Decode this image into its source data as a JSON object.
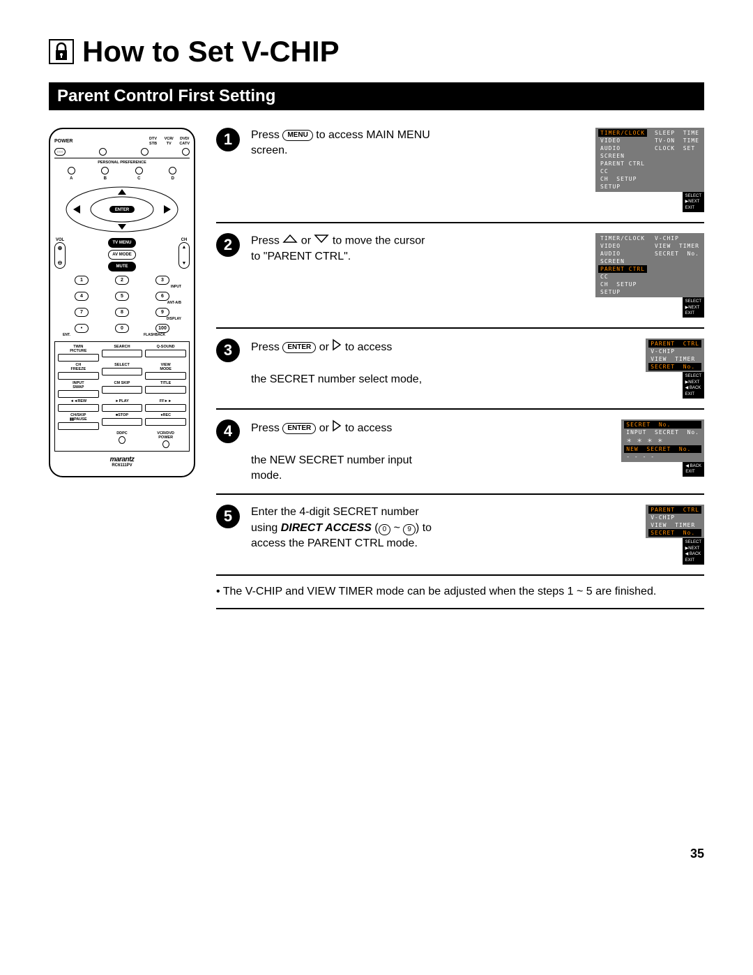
{
  "title": "How to Set V-CHIP",
  "section": "Parent Control First Setting",
  "remote": {
    "power": "POWER",
    "top_labels": [
      "DTV",
      "VCR/",
      "DVD/",
      "STB",
      "TV",
      "CATV"
    ],
    "personal_pref": "PERSONAL PREFERENCE",
    "pref_letters": [
      "A",
      "B",
      "C",
      "D"
    ],
    "enter": "ENTER",
    "vol": "VOL",
    "ch": "CH",
    "tvmenu": "TV MENU",
    "avmode": "AV MODE",
    "mute": "MUTE",
    "input": "INPUT",
    "anta": "ANT-A/B",
    "display": "DISPLAY",
    "ent": "ENT.",
    "flashback": "FLASHBACK",
    "nums": [
      "1",
      "2",
      "3",
      "4",
      "5",
      "6",
      "7",
      "8",
      "9",
      "•",
      "0",
      "100"
    ],
    "grid_labels": [
      "TWIN PICTURE",
      "SEARCH",
      "Q-SOUND",
      "CH FREEZE",
      "SELECT",
      "VIEW MODE",
      "INPUT",
      "SWAP",
      "CM SKIP",
      "TITLE",
      "◄◄REW",
      "►PLAY",
      "FF►►",
      "CH/SKIP",
      "▮▮PAUSE",
      "■STOP",
      "●REC",
      "",
      "DDPC",
      "",
      "VCR/DVD POWER"
    ],
    "logo": "marantz",
    "model": "RC6111PV"
  },
  "steps": [
    {
      "n": "1",
      "text_before": "Press ",
      "pill": "MENU",
      "text_after": " to access MAIN MENU screen.",
      "osd_left": [
        "TIMER/CLOCK",
        "VIDEO",
        "AUDIO",
        "SCREEN",
        "PARENT CTRL",
        "CC",
        "CH  SETUP",
        "SETUP"
      ],
      "osd_left_hl": 0,
      "osd_right": [
        "SLEEP  TIME",
        "TV-ON  TIME",
        "CLOCK  SET"
      ],
      "footer": [
        "SELECT",
        "▶NEXT",
        "EXIT"
      ]
    },
    {
      "n": "2",
      "html": "Press <span class='tri'><svg width='22' height='14'><polygon points='11,2 20,12 2,12' fill='none' stroke='#000' stroke-width='1.5'/></svg></span> or <span class='tri'><svg width='22' height='14'><polygon points='2,2 20,2 11,12' fill='none' stroke='#000' stroke-width='1.5'/></svg></span> to move the cursor to \"PARENT CTRL\".",
      "osd_left": [
        "TIMER/CLOCK",
        "VIDEO",
        "AUDIO",
        "SCREEN",
        "PARENT CTRL",
        "CC",
        "CH  SETUP",
        "SETUP"
      ],
      "osd_left_hl": 4,
      "osd_right": [
        "V-CHIP",
        "VIEW  TIMER",
        "SECRET  No."
      ],
      "footer": [
        "SELECT",
        "▶NEXT",
        "EXIT"
      ]
    },
    {
      "n": "3",
      "html": "Press <span class='pill'>ENTER</span> or <span class='tri'><svg width='14' height='18'><polygon points='2,2 12,9 2,16' fill='none' stroke='#000' stroke-width='1.5'/></svg></span> to access<br><br>the SECRET number select mode,",
      "osd_left": [
        "PARENT  CTRL",
        "V-CHIP",
        "VIEW  TIMER",
        "SECRET  No."
      ],
      "osd_left_hl": 0,
      "osd_left_hl2": 3,
      "footer": [
        "SELECT",
        "▶NEXT",
        "◀ BACK",
        "EXIT"
      ]
    },
    {
      "n": "4",
      "html": "Press <span class='pill'>ENTER</span> or <span class='tri'><svg width='14' height='18'><polygon points='2,2 12,9 2,16' fill='none' stroke='#000' stroke-width='1.5'/></svg></span> to access<br><br>the NEW SECRET number input mode.",
      "osd_left": [
        "SECRET  No.",
        "INPUT  SECRET  No.",
        "＊ ＊ ＊ ＊",
        "NEW  SECRET  No.",
        "- - - -"
      ],
      "osd_left_hl": 0,
      "osd_left_hl2": 3,
      "footer": [
        "◀ BACK",
        "EXIT"
      ]
    },
    {
      "n": "5",
      "html": "Enter the 4-digit SECRET number using <b><i>DIRECT ACCESS</i></b> (<span style='display:inline-block;border:1px solid #000;border-radius:8px;padding:0 5px;font-size:10px'>0</span> ~ <span style='display:inline-block;border:1px solid #000;border-radius:8px;padding:0 5px;font-size:10px'>9</span>) to access the PARENT CTRL mode.",
      "osd_left": [
        "PARENT  CTRL",
        "V-CHIP",
        "VIEW  TIMER",
        "SECRET  No."
      ],
      "osd_left_hl": 0,
      "osd_left_hl2": 3,
      "footer": [
        "SELECT",
        "▶NEXT",
        "◀ BACK",
        "EXIT"
      ]
    }
  ],
  "note": "• The V-CHIP and VIEW TIMER mode can be adjusted when the steps 1 ~ 5 are finished.",
  "pagenum": "35"
}
